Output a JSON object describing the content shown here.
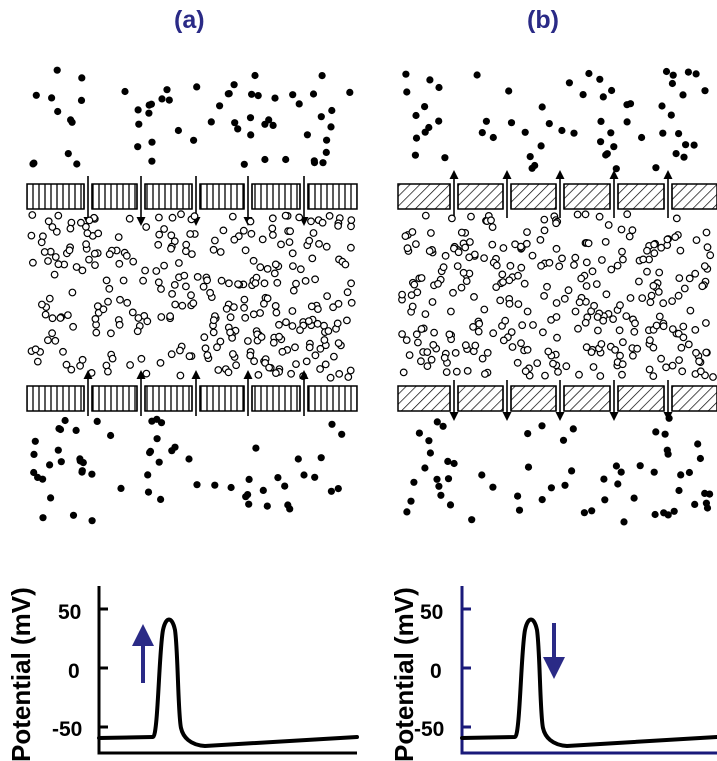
{
  "panels": [
    {
      "label": "(a)",
      "ion_flow": "inward",
      "membrane_pattern": "vertical-stripes",
      "plot": {
        "ylabel": "Potential (mV)",
        "ticks": [
          "50",
          "0",
          "-50"
        ],
        "arrow": "up",
        "axis_color": "#000000"
      }
    },
    {
      "label": "(b)",
      "ion_flow": "outward",
      "membrane_pattern": "diagonal-hatch",
      "plot": {
        "ylabel": "Potential (mV)",
        "ticks": [
          "50",
          "0",
          "-50"
        ],
        "arrow": "down",
        "axis_color": "#1a1a7a"
      }
    }
  ],
  "colors": {
    "label": "#2a2a86",
    "arrow": "#2a2a86",
    "ink": "#000000"
  }
}
